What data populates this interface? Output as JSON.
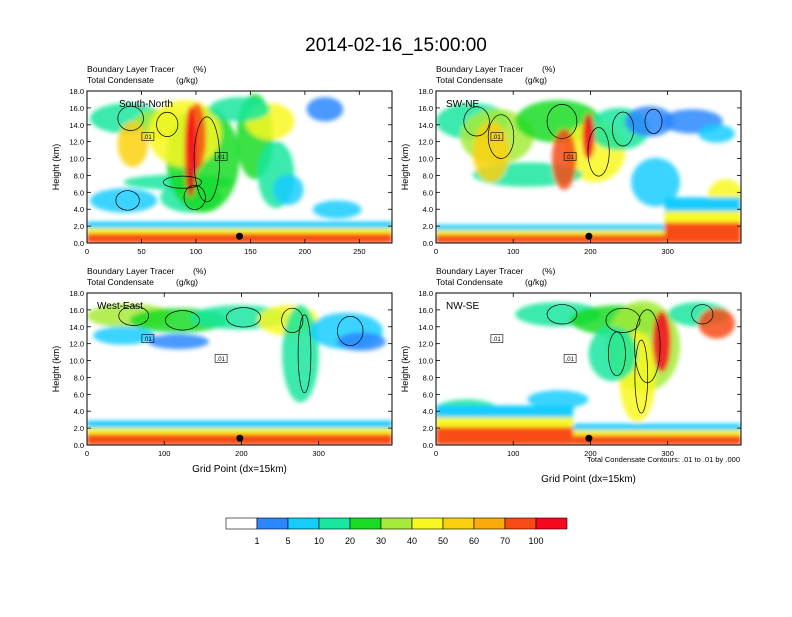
{
  "figure": {
    "title": "2014-02-16_15:00:00",
    "note": "Total Condensate Contours: .01 to .01 by .000"
  },
  "colorbar": {
    "colors": [
      "#ffffff",
      "#2a87ff",
      "#15ccff",
      "#17e69e",
      "#18dc23",
      "#a6eb3b",
      "#f8f821",
      "#fbd10f",
      "#fbaa0c",
      "#f84b14",
      "#f8071c"
    ],
    "labels": [
      "1",
      "5",
      "10",
      "20",
      "30",
      "40",
      "50",
      "60",
      "70",
      "100"
    ]
  },
  "chart_data": [
    {
      "type": "heatmap",
      "panel": "top-left",
      "label": "South-North",
      "title_line1": "Boundary Layer Tracer",
      "title_unit1": "(%)",
      "title_line2": "Total Condensate",
      "title_unit2": "(g/kg)",
      "xlabel": "",
      "ylabel": "Height (km)",
      "xlim": [
        0,
        280
      ],
      "ylim": [
        0,
        18
      ],
      "xticks": [
        "0",
        "50",
        "100",
        "150",
        "200",
        "250"
      ],
      "xtick_values": [
        0,
        50,
        100,
        150,
        200,
        250
      ],
      "yticks": [
        "0.0",
        "2.0",
        "4.0",
        "6.0",
        "8.0",
        "10.0",
        "12.0",
        "14.0",
        "16.0",
        "18.0"
      ],
      "ytick_values": [
        0,
        2,
        4,
        6,
        8,
        10,
        12,
        14,
        16,
        18
      ],
      "marker": {
        "x": 140,
        "y": 0.8
      },
      "contour_label": ".01"
    },
    {
      "type": "heatmap",
      "panel": "top-right",
      "label": "SW-NE",
      "title_line1": "Boundary Layer Tracer",
      "title_unit1": "(%)",
      "title_line2": "Total Condensate",
      "title_unit2": "(g/kg)",
      "xlabel": "",
      "ylabel": "Height (km)",
      "xlim": [
        0,
        395
      ],
      "ylim": [
        0,
        18
      ],
      "xticks": [
        "0",
        "100",
        "200",
        "300"
      ],
      "xtick_values": [
        0,
        100,
        200,
        300
      ],
      "yticks": [
        "0.0",
        "2.0",
        "4.0",
        "6.0",
        "8.0",
        "10.0",
        "12.0",
        "14.0",
        "16.0",
        "18.0"
      ],
      "ytick_values": [
        0,
        2,
        4,
        6,
        8,
        10,
        12,
        14,
        16,
        18
      ],
      "marker": {
        "x": 198,
        "y": 0.8
      },
      "contour_label": ".01"
    },
    {
      "type": "heatmap",
      "panel": "bottom-left",
      "label": "West-East",
      "title_line1": "Boundary Layer Tracer",
      "title_unit1": "(%)",
      "title_line2": "Total Condensate",
      "title_unit2": "(g/kg)",
      "xlabel": "Grid Point (dx=15km)",
      "ylabel": "Height (km)",
      "xlim": [
        0,
        395
      ],
      "ylim": [
        0,
        18
      ],
      "xticks": [
        "0",
        "100",
        "200",
        "300"
      ],
      "xtick_values": [
        0,
        100,
        200,
        300
      ],
      "yticks": [
        "0.0",
        "2.0",
        "4.0",
        "6.0",
        "8.0",
        "10.0",
        "12.0",
        "14.0",
        "16.0",
        "18.0"
      ],
      "ytick_values": [
        0,
        2,
        4,
        6,
        8,
        10,
        12,
        14,
        16,
        18
      ],
      "marker": {
        "x": 198,
        "y": 0.8
      },
      "contour_label": ".01"
    },
    {
      "type": "heatmap",
      "panel": "bottom-right",
      "label": "NW-SE",
      "title_line1": "Boundary Layer Tracer",
      "title_unit1": "(%)",
      "title_line2": "Total Condensate",
      "title_unit2": "(g/kg)",
      "xlabel": "Grid Point (dx=15km)",
      "ylabel": "Height (km)",
      "xlim": [
        0,
        395
      ],
      "ylim": [
        0,
        18
      ],
      "xticks": [
        "0",
        "100",
        "200",
        "300"
      ],
      "xtick_values": [
        0,
        100,
        200,
        300
      ],
      "yticks": [
        "0.0",
        "2.0",
        "4.0",
        "6.0",
        "8.0",
        "10.0",
        "12.0",
        "14.0",
        "16.0",
        "18.0"
      ],
      "ytick_values": [
        0,
        2,
        4,
        6,
        8,
        10,
        12,
        14,
        16,
        18
      ],
      "marker": {
        "x": 198,
        "y": 0.8
      },
      "contour_label": ".01"
    }
  ]
}
